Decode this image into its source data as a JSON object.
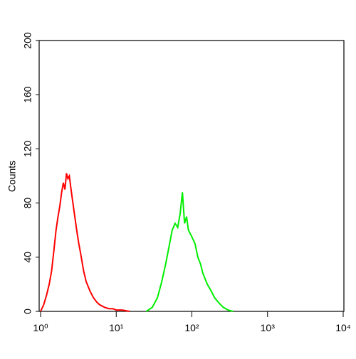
{
  "chart_data": {
    "type": "line",
    "xscale": "log",
    "ylabel": "Counts",
    "xlim": [
      1,
      10000
    ],
    "xticks": [
      {
        "value": 1,
        "label": "10⁰"
      },
      {
        "value": 10,
        "label": "10¹"
      },
      {
        "value": 100,
        "label": "10²"
      },
      {
        "value": 1000,
        "label": "10³"
      },
      {
        "value": 10000,
        "label": "10⁴"
      }
    ],
    "ylim": [
      0,
      200
    ],
    "yticks": [
      0,
      40,
      80,
      120,
      160,
      200
    ],
    "series": [
      {
        "color": "#ff0000",
        "x": [
          1.0,
          1.1,
          1.2,
          1.3,
          1.4,
          1.5,
          1.6,
          1.7,
          1.8,
          1.9,
          2.0,
          2.1,
          2.2,
          2.3,
          2.4,
          2.5,
          2.6,
          2.8,
          3.0,
          3.2,
          3.4,
          3.7,
          4.0,
          4.5,
          5,
          5.5,
          6,
          7,
          8,
          9,
          10,
          12,
          15
        ],
        "values": [
          0,
          5,
          12,
          20,
          30,
          45,
          60,
          70,
          78,
          88,
          95,
          90,
          102,
          98,
          100,
          92,
          85,
          72,
          60,
          50,
          42,
          30,
          22,
          15,
          10,
          7,
          5,
          3,
          2,
          2,
          1,
          1,
          0
        ]
      },
      {
        "color": "#00ee00",
        "x": [
          25,
          30,
          35,
          40,
          45,
          50,
          55,
          60,
          65,
          70,
          75,
          80,
          85,
          90,
          100,
          110,
          120,
          130,
          140,
          160,
          180,
          200,
          230,
          260,
          300,
          350
        ],
        "values": [
          0,
          3,
          10,
          22,
          35,
          48,
          60,
          65,
          62,
          72,
          88,
          65,
          70,
          60,
          55,
          50,
          40,
          35,
          28,
          20,
          15,
          10,
          6,
          3,
          1,
          0
        ]
      }
    ]
  }
}
